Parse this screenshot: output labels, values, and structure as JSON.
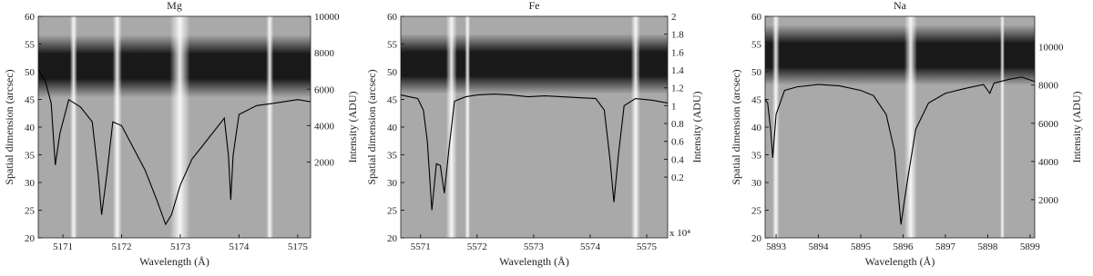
{
  "chart_data": [
    {
      "type": "line",
      "title": "Mg",
      "xlabel": "Wavelength (Å)",
      "ylabel": "Spatial dimension (arcsec)",
      "y2label": "Intensity (ADU)",
      "xlim": [
        5170.58,
        5175.22
      ],
      "xticks": [
        5171,
        5172,
        5173,
        5174,
        5175
      ],
      "ylim": [
        20,
        60
      ],
      "yticks": [
        20,
        25,
        30,
        35,
        40,
        45,
        50,
        55,
        60
      ],
      "y2lim": [
        -2160,
        10000
      ],
      "y2ticks": [
        2000,
        4000,
        6000,
        8000,
        10000
      ],
      "series": [
        {
          "color": "#000000",
          "axis": "y2",
          "x": [
            5170.58,
            5170.7,
            5170.8,
            5170.87,
            5170.95,
            5171.1,
            5171.3,
            5171.5,
            5171.6,
            5171.66,
            5171.75,
            5171.85,
            5172.0,
            5172.2,
            5172.4,
            5172.6,
            5172.75,
            5172.85,
            5173.0,
            5173.2,
            5173.4,
            5173.6,
            5173.75,
            5173.82,
            5173.86,
            5173.9,
            5174.0,
            5174.3,
            5174.6,
            5175.0,
            5175.22
          ],
          "values": [
            7060,
            6450,
            5230,
            1840,
            3590,
            5430,
            5020,
            4210,
            1350,
            -890,
            1350,
            4210,
            4000,
            2780,
            1560,
            -80,
            -1420,
            -890,
            740,
            2170,
            2980,
            3800,
            4410,
            2370,
            -80,
            2370,
            4610,
            5100,
            5230,
            5430,
            5310
          ]
        }
      ]
    },
    {
      "type": "line",
      "title": "Fe",
      "xlabel": "Wavelength (Å)",
      "ylabel": "Spatial dimension (arcsec)",
      "y2label": "Intensity (ADU)",
      "y2_scale_label": "x 10⁴",
      "xlim": [
        5570.65,
        5575.37
      ],
      "xticks": [
        5571,
        5572,
        5573,
        5574,
        5575
      ],
      "ylim": [
        20,
        60
      ],
      "yticks": [
        20,
        25,
        30,
        35,
        40,
        45,
        50,
        55,
        60
      ],
      "y2lim": [
        -0.48,
        2
      ],
      "y2ticks": [
        0.2,
        0.4,
        0.6,
        0.8,
        1,
        1.2,
        1.4,
        1.6,
        1.8,
        2
      ],
      "series": [
        {
          "color": "#000000",
          "axis": "y2",
          "x": [
            5570.65,
            5570.8,
            5570.95,
            5571.05,
            5571.12,
            5571.2,
            5571.28,
            5571.35,
            5571.42,
            5571.5,
            5571.6,
            5571.8,
            5572.0,
            5572.3,
            5572.6,
            5572.9,
            5573.2,
            5573.5,
            5573.8,
            5574.1,
            5574.25,
            5574.35,
            5574.42,
            5574.5,
            5574.6,
            5574.8,
            5575.1,
            5575.37
          ],
          "values": [
            1.12,
            1.1,
            1.08,
            0.95,
            0.6,
            -0.17,
            0.35,
            0.33,
            0.02,
            0.5,
            1.05,
            1.1,
            1.12,
            1.13,
            1.12,
            1.1,
            1.11,
            1.1,
            1.09,
            1.08,
            0.95,
            0.4,
            -0.08,
            0.45,
            1.0,
            1.08,
            1.06,
            1.03
          ]
        }
      ]
    },
    {
      "type": "line",
      "title": "Na",
      "xlabel": "Wavelength (Å)",
      "ylabel": "Spatial dimension (arcsec)",
      "y2label": "Intensity (ADU)",
      "xlim": [
        5892.74,
        5899.11
      ],
      "xticks": [
        5893,
        5894,
        5895,
        5896,
        5897,
        5898,
        5899
      ],
      "ylim": [
        20,
        60
      ],
      "yticks": [
        20,
        25,
        30,
        35,
        40,
        45,
        50,
        55,
        60
      ],
      "y2lim": [
        0,
        11600
      ],
      "y2ticks": [
        2000,
        4000,
        6000,
        8000,
        10000
      ],
      "series": [
        {
          "color": "#000000",
          "axis": "y2",
          "x": [
            5892.74,
            5892.8,
            5892.87,
            5892.92,
            5893.0,
            5893.2,
            5893.5,
            5894.0,
            5894.5,
            5895.0,
            5895.3,
            5895.6,
            5895.8,
            5895.95,
            5896.1,
            5896.3,
            5896.6,
            5897.0,
            5897.5,
            5897.9,
            5898.05,
            5898.15,
            5898.5,
            5898.8,
            5899.11
          ],
          "values": [
            7250,
            7060,
            5690,
            4200,
            6470,
            7720,
            7910,
            8030,
            7960,
            7720,
            7450,
            6470,
            4520,
            700,
            2960,
            5690,
            7060,
            7570,
            7840,
            8030,
            7570,
            8110,
            8300,
            8420,
            8190
          ]
        }
      ]
    }
  ]
}
